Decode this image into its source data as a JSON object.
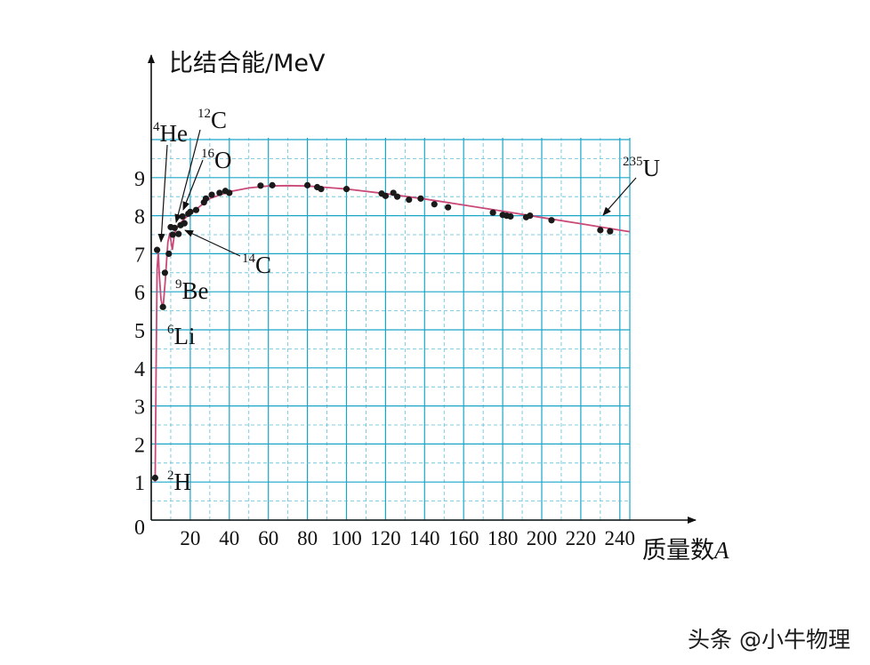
{
  "colors": {
    "grid": "#1aa5c8",
    "grid_minor": "#5bbfd8",
    "curve": "#c94a78",
    "point": "#1a1a1a",
    "axis": "#111111"
  },
  "watermark": "头条 @小牛物理",
  "chart_data": {
    "type": "scatter",
    "title": "",
    "ylabel": "比结合能/MeV",
    "xlabel": "质量数A",
    "xlabel_main": "质量数",
    "xlabel_var": "A",
    "xlim": [
      0,
      245
    ],
    "ylim": [
      0,
      10
    ],
    "x_ticks": [
      "20",
      "40",
      "60",
      "80",
      "100",
      "120",
      "140",
      "160",
      "180",
      "200",
      "220",
      "240"
    ],
    "x_tick_values": [
      20,
      40,
      60,
      80,
      100,
      120,
      140,
      160,
      180,
      200,
      220,
      240
    ],
    "y_ticks": [
      "0",
      "1",
      "2",
      "3",
      "4",
      "5",
      "6",
      "7",
      "8",
      "9"
    ],
    "y_tick_values": [
      0,
      1,
      2,
      3,
      4,
      5,
      6,
      7,
      8,
      9
    ],
    "grid": true,
    "series": [
      {
        "points": [
          [
            2,
            1.11
          ],
          [
            3,
            7.1
          ],
          [
            6,
            5.6
          ],
          [
            7,
            6.5
          ],
          [
            9,
            7.0
          ],
          [
            10,
            7.7
          ],
          [
            11,
            7.5
          ],
          [
            12,
            7.68
          ],
          [
            14,
            7.52
          ],
          [
            15,
            7.75
          ],
          [
            16,
            7.98
          ],
          [
            17,
            7.8
          ],
          [
            19,
            8.05
          ],
          [
            20,
            8.1
          ],
          [
            23,
            8.15
          ],
          [
            27,
            8.35
          ],
          [
            28,
            8.45
          ],
          [
            31,
            8.55
          ],
          [
            35,
            8.6
          ],
          [
            38,
            8.65
          ],
          [
            40,
            8.6
          ],
          [
            56,
            8.79
          ],
          [
            62,
            8.8
          ],
          [
            80,
            8.8
          ],
          [
            85,
            8.75
          ],
          [
            87,
            8.7
          ],
          [
            100,
            8.7
          ],
          [
            118,
            8.58
          ],
          [
            120,
            8.52
          ],
          [
            124,
            8.6
          ],
          [
            126,
            8.5
          ],
          [
            132,
            8.42
          ],
          [
            138,
            8.45
          ],
          [
            145,
            8.3
          ],
          [
            152,
            8.22
          ],
          [
            175,
            8.08
          ],
          [
            180,
            8.02
          ],
          [
            182,
            8.0
          ],
          [
            184,
            7.98
          ],
          [
            192,
            7.96
          ],
          [
            194,
            8.0
          ],
          [
            205,
            7.88
          ],
          [
            230,
            7.62
          ],
          [
            235,
            7.59
          ]
        ]
      },
      {
        "type": "line",
        "points": [
          [
            2,
            1.0
          ],
          [
            2.5,
            4.0
          ],
          [
            3,
            6.6
          ],
          [
            3.6,
            7.05
          ],
          [
            4.2,
            6.4
          ],
          [
            5,
            5.8
          ],
          [
            6,
            5.55
          ],
          [
            7.2,
            6.3
          ],
          [
            8.5,
            7.3
          ],
          [
            9.5,
            7.55
          ],
          [
            10.8,
            7.1
          ],
          [
            12,
            7.55
          ],
          [
            14,
            7.75
          ],
          [
            17,
            7.92
          ],
          [
            20,
            8.05
          ],
          [
            25,
            8.25
          ],
          [
            30,
            8.45
          ],
          [
            40,
            8.63
          ],
          [
            50,
            8.73
          ],
          [
            60,
            8.78
          ],
          [
            70,
            8.79
          ],
          [
            80,
            8.78
          ],
          [
            90,
            8.74
          ],
          [
            100,
            8.7
          ],
          [
            120,
            8.58
          ],
          [
            140,
            8.44
          ],
          [
            160,
            8.28
          ],
          [
            180,
            8.12
          ],
          [
            200,
            7.95
          ],
          [
            220,
            7.79
          ],
          [
            240,
            7.62
          ],
          [
            245,
            7.58
          ]
        ]
      }
    ],
    "annotations": [
      {
        "sup": "2",
        "text": "H",
        "x": 2,
        "y": 1.11
      },
      {
        "sup": "4",
        "text": "He",
        "x": 4,
        "y": 7.07
      },
      {
        "sup": "6",
        "text": "Li",
        "x": 6,
        "y": 5.33
      },
      {
        "sup": "9",
        "text": "Be",
        "x": 9,
        "y": 6.46
      },
      {
        "sup": "12",
        "text": "C",
        "x": 12,
        "y": 7.68
      },
      {
        "sup": "14",
        "text": "C",
        "x": 14,
        "y": 7.52
      },
      {
        "sup": "16",
        "text": "O",
        "x": 16,
        "y": 7.98
      },
      {
        "sup": "235",
        "text": "U",
        "x": 235,
        "y": 7.59
      }
    ]
  }
}
